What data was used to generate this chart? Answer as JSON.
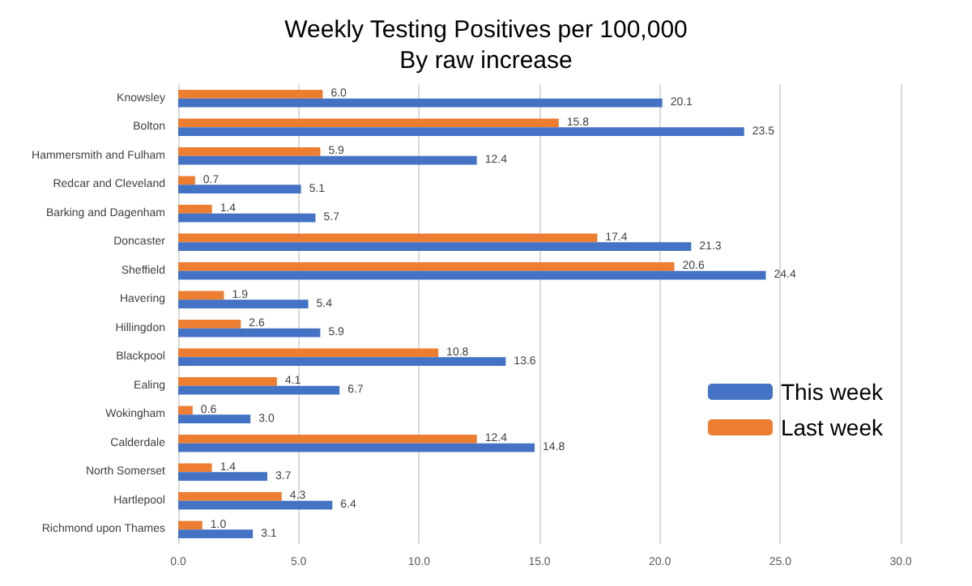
{
  "chart_data": {
    "type": "bar",
    "orientation": "horizontal",
    "title": "Weekly Testing Positives per 100,000",
    "subtitle": "By raw increase",
    "categories": [
      "Knowsley",
      "Bolton",
      "Hammersmith and Fulham",
      "Redcar and Cleveland",
      "Barking and Dagenham",
      "Doncaster",
      "Sheffield",
      "Havering",
      "Hillingdon",
      "Blackpool",
      "Ealing",
      "Wokingham",
      "Calderdale",
      "North Somerset",
      "Hartlepool",
      "Richmond upon Thames"
    ],
    "series": [
      {
        "name": "Last week",
        "color": "#ed7d31",
        "values": [
          6.0,
          15.8,
          5.9,
          0.7,
          1.4,
          17.4,
          20.6,
          1.9,
          2.6,
          10.8,
          4.1,
          0.6,
          12.4,
          1.4,
          4.3,
          1.0
        ],
        "value_labels": [
          "6.0",
          "15.8",
          "5.9",
          "0.7",
          "1.4",
          "17.4",
          "20.6",
          "1.9",
          "2.6",
          "10.8",
          "4.1",
          "0.6",
          "12.4",
          "1.4",
          "4.3",
          "1.0"
        ]
      },
      {
        "name": "This week",
        "color": "#4472c4",
        "values": [
          20.1,
          23.5,
          12.4,
          5.1,
          5.7,
          21.3,
          24.4,
          5.4,
          5.9,
          13.6,
          6.7,
          3.0,
          14.8,
          3.7,
          6.4,
          3.1
        ],
        "value_labels": [
          "20.1",
          "23.5",
          "12.4",
          "5.1",
          "5.7",
          "21.3",
          "24.4",
          "5.4",
          "5.9",
          "13.6",
          "6.7",
          "3.0",
          "14.8",
          "3.7",
          "6.4",
          "3.1"
        ]
      }
    ],
    "xlim": [
      0,
      30
    ],
    "xticks": [
      {
        "value": 0,
        "label": "0.0"
      },
      {
        "value": 5,
        "label": "5.0"
      },
      {
        "value": 10,
        "label": "10.0"
      },
      {
        "value": 15,
        "label": "15.0"
      },
      {
        "value": 20,
        "label": "20.0"
      },
      {
        "value": 25,
        "label": "25.0"
      },
      {
        "value": 30,
        "label": "30.0"
      }
    ],
    "grid": "x",
    "legend": "right"
  }
}
